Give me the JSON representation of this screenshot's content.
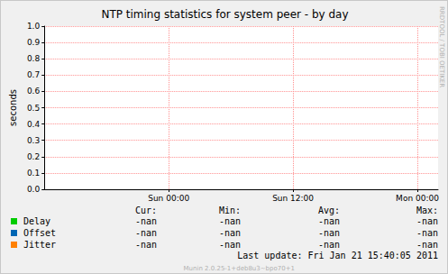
{
  "chart_data": {
    "type": "line",
    "title": "NTP timing statistics for system peer - by day",
    "ylabel": "seconds",
    "side_text": "RRDTOOL / TOBI OETIKER",
    "categories": [
      null,
      null,
      null,
      null,
      null,
      null,
      null,
      null,
      null,
      null,
      null,
      null,
      "Sun 00:00",
      null,
      null,
      null,
      null,
      null,
      null,
      null,
      null,
      null,
      null,
      null,
      "Sun 12:00",
      null,
      null,
      null,
      null,
      null,
      null,
      null,
      null,
      null,
      null,
      null,
      "Mon 00:00",
      null,
      null
    ],
    "series": [
      {
        "name": "Delay",
        "color": "#00cc00",
        "values": [
          null,
          null,
          null,
          null,
          null,
          null,
          null,
          null,
          null,
          null,
          null,
          null,
          null,
          null,
          null,
          null,
          null,
          null,
          null,
          null,
          null,
          null,
          null,
          null,
          null,
          null,
          null,
          null,
          null,
          null,
          null,
          null,
          null,
          null,
          null,
          null,
          null,
          null,
          null
        ],
        "stats": [
          "-nan",
          "-nan",
          "-nan",
          "-nan"
        ]
      },
      {
        "name": "Offset",
        "color": "#0066b3",
        "values": [
          null,
          null,
          null,
          null,
          null,
          null,
          null,
          null,
          null,
          null,
          null,
          null,
          null,
          null,
          null,
          null,
          null,
          null,
          null,
          null,
          null,
          null,
          null,
          null,
          null,
          null,
          null,
          null,
          null,
          null,
          null,
          null,
          null,
          null,
          null,
          null,
          null,
          null,
          null
        ],
        "stats": [
          "-nan",
          "-nan",
          "-nan",
          "-nan"
        ]
      },
      {
        "name": "Jitter",
        "color": "#ff8000",
        "values": [
          null,
          null,
          null,
          null,
          null,
          null,
          null,
          null,
          null,
          null,
          null,
          null,
          null,
          null,
          null,
          null,
          null,
          null,
          null,
          null,
          null,
          null,
          null,
          null,
          null,
          null,
          null,
          null,
          null,
          null,
          null,
          null,
          null,
          null,
          null,
          null,
          null,
          null,
          null
        ],
        "stats": [
          "-nan",
          "-nan",
          "-nan",
          "-nan"
        ]
      }
    ],
    "stats_headers": [
      "Cur:",
      "Min:",
      "Avg:",
      "Max:"
    ],
    "ylim": [
      0,
      1
    ],
    "yticks": [
      {
        "value": 0,
        "label": "0.0"
      },
      0.1,
      0.2,
      0.3,
      0.4,
      0.5,
      0.6,
      0.7,
      0.8,
      0.9,
      {
        "value": 1,
        "label": "1.0"
      }
    ],
    "grid": true,
    "footer": "Last update:  Fri Jan 21 15:40:05 2011",
    "credit": "Munin 2.0.25-1+deb8u3~bpo70+1"
  }
}
